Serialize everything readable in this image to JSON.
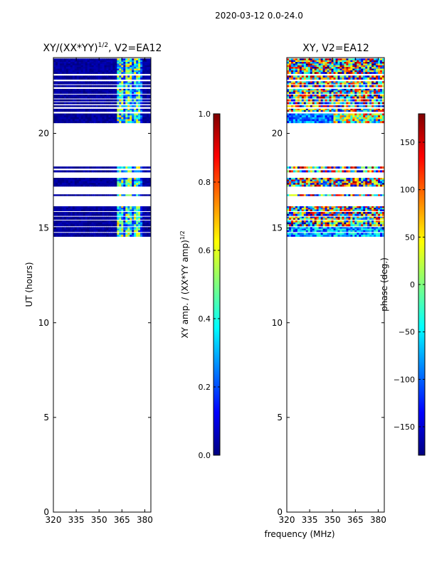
{
  "suptitle": "2020-03-12 0.0-24.0",
  "xlabel_shared": "frequency (MHz)",
  "colors": {
    "jet": [
      "#00007f",
      "#0000ff",
      "#007fff",
      "#00ffff",
      "#7fff7f",
      "#ffff00",
      "#ff7f00",
      "#ff0000",
      "#7f0000"
    ]
  },
  "chart_data": [
    {
      "type": "heatmap",
      "title_main": "XY/(XX*YY)",
      "title_sup": "1/2",
      "title_tail": ", V2=EA12",
      "ylabel": "UT (hours)",
      "xticks": [
        320,
        335,
        350,
        365,
        380
      ],
      "yticks": [
        0,
        5,
        10,
        15,
        20
      ],
      "xlim": [
        320,
        384
      ],
      "ylim": [
        0,
        24
      ],
      "colorbar": {
        "label_main": "XY amp. / (XX*YY amp)",
        "label_sup": "1/2",
        "range": [
          0,
          1
        ],
        "ticks": [
          "0.0",
          "0.2",
          "0.4",
          "0.6",
          "0.8",
          "1.0"
        ],
        "tick_values": [
          0,
          0.2,
          0.4,
          0.6,
          0.8,
          1.0
        ]
      },
      "data_bands_hours": [
        [
          14.55,
          14.75
        ],
        [
          14.8,
          15.05
        ],
        [
          15.1,
          15.4
        ],
        [
          15.45,
          15.6
        ],
        [
          15.65,
          15.85
        ],
        [
          15.9,
          16.15
        ],
        [
          16.7,
          16.78
        ],
        [
          17.2,
          17.65
        ],
        [
          17.95,
          18.05
        ],
        [
          18.15,
          18.25
        ],
        [
          20.55,
          21.05
        ],
        [
          21.15,
          21.3
        ],
        [
          21.4,
          21.48
        ],
        [
          21.55,
          21.65
        ],
        [
          21.7,
          21.8
        ],
        [
          21.85,
          22.05
        ],
        [
          22.1,
          22.35
        ],
        [
          22.45,
          22.55
        ],
        [
          22.6,
          22.75
        ],
        [
          22.85,
          23.05
        ],
        [
          23.15,
          23.95
        ]
      ],
      "features": "mostly low amplitude (deep blue) with bright RFI channels near 362-378 MHz"
    },
    {
      "type": "heatmap",
      "title_main": "XY, V2=EA12",
      "title_sup": "",
      "title_tail": "",
      "ylabel": "",
      "xticks": [
        320,
        335,
        350,
        365,
        380
      ],
      "yticks": [
        0,
        5,
        10,
        15,
        20
      ],
      "xlim": [
        320,
        384
      ],
      "ylim": [
        0,
        24
      ],
      "colorbar": {
        "label_main": "phase (deg.)",
        "label_sup": "",
        "range": [
          -180,
          180
        ],
        "ticks": [
          "−150",
          "−100",
          "−50",
          "0",
          "50",
          "100",
          "150"
        ],
        "tick_values": [
          -150,
          -100,
          -50,
          0,
          50,
          100,
          150
        ]
      },
      "data_bands_hours": [
        [
          14.55,
          14.75
        ],
        [
          14.8,
          15.05
        ],
        [
          15.1,
          15.4
        ],
        [
          15.45,
          15.6
        ],
        [
          15.65,
          15.85
        ],
        [
          15.9,
          16.15
        ],
        [
          16.7,
          16.78
        ],
        [
          17.2,
          17.65
        ],
        [
          17.95,
          18.05
        ],
        [
          18.15,
          18.25
        ],
        [
          20.55,
          21.05
        ],
        [
          21.15,
          21.3
        ],
        [
          21.4,
          21.48
        ],
        [
          21.55,
          21.65
        ],
        [
          21.7,
          21.8
        ],
        [
          21.85,
          22.05
        ],
        [
          22.1,
          22.35
        ],
        [
          22.45,
          22.55
        ],
        [
          22.6,
          22.75
        ],
        [
          22.85,
          23.05
        ],
        [
          23.15,
          23.95
        ]
      ],
      "features": "phase noise spanning full colour range; several bands dominated by blue phase"
    }
  ]
}
